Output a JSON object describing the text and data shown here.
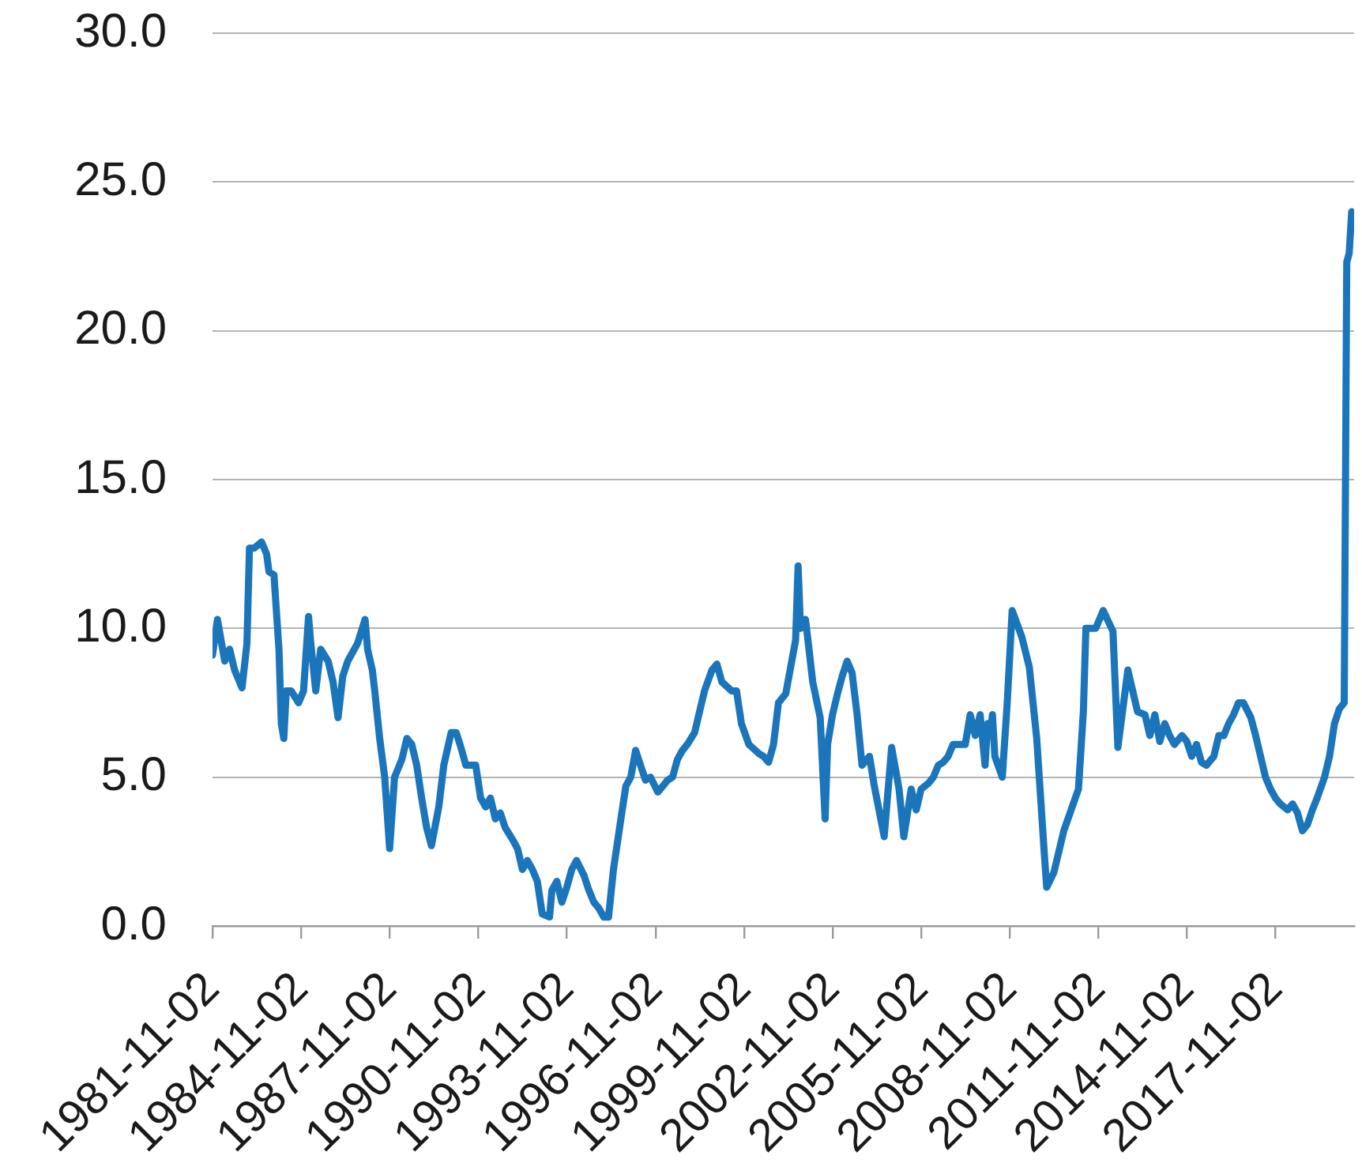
{
  "chart_data": {
    "type": "line",
    "color": "#1b75bb",
    "marker": "none",
    "line_style": "solid",
    "grid": "y",
    "x": [
      "1981-11",
      "1982-01",
      "1982-04",
      "1982-06",
      "1982-08",
      "1982-10",
      "1982-11",
      "1983-01",
      "1983-02",
      "1983-04",
      "1983-07",
      "1983-09",
      "1983-10",
      "1983-12",
      "1984-02",
      "1984-03",
      "1984-04",
      "1984-05",
      "1984-07",
      "1984-10",
      "1984-12",
      "1985-02",
      "1985-03",
      "1985-05",
      "1985-07",
      "1985-10",
      "1985-12",
      "1986-02",
      "1986-04",
      "1986-06",
      "1986-08",
      "1986-10",
      "1987-01",
      "1987-02",
      "1987-04",
      "1987-05",
      "1987-07",
      "1987-09",
      "1987-11",
      "1988-01",
      "1988-04",
      "1988-06",
      "1988-08",
      "1988-10",
      "1988-12",
      "1989-02",
      "1989-04",
      "1989-07",
      "1989-09",
      "1989-12",
      "1990-02",
      "1990-04",
      "1990-06",
      "1990-10",
      "1990-12",
      "1991-02",
      "1991-04",
      "1991-06",
      "1991-08",
      "1991-10",
      "1992-01",
      "1992-03",
      "1992-05",
      "1992-07",
      "1992-09",
      "1992-11",
      "1993-01",
      "1993-04",
      "1993-05",
      "1993-07",
      "1993-09",
      "1993-11",
      "1994-01",
      "1994-03",
      "1994-06",
      "1994-08",
      "1994-10",
      "1994-12",
      "1995-02",
      "1995-04",
      "1995-06",
      "1995-09",
      "1995-11",
      "1996-01",
      "1996-03",
      "1996-05",
      "1996-07",
      "1996-09",
      "1996-12",
      "1997-02",
      "1997-04",
      "1997-06",
      "1997-08",
      "1997-10",
      "1997-12",
      "1998-03",
      "1998-05",
      "1998-07",
      "1998-10",
      "1998-12",
      "1999-02",
      "1999-06",
      "1999-08",
      "1999-10",
      "2000-01",
      "2000-05",
      "2000-07",
      "2000-09",
      "2000-11",
      "2001-01",
      "2001-04",
      "2001-06",
      "2001-08",
      "2001-09",
      "2001-10",
      "2001-12",
      "2002-01",
      "2002-03",
      "2002-06",
      "2002-08",
      "2002-09",
      "2002-11",
      "2003-01",
      "2003-03",
      "2003-05",
      "2003-07",
      "2003-09",
      "2003-11",
      "2004-02",
      "2004-04",
      "2004-08",
      "2004-11",
      "2005-02",
      "2005-04",
      "2005-07",
      "2005-09",
      "2005-11",
      "2006-02",
      "2006-04",
      "2006-06",
      "2006-08",
      "2006-10",
      "2006-12",
      "2007-02",
      "2007-05",
      "2007-07",
      "2007-09",
      "2007-11",
      "2008-01",
      "2008-02",
      "2008-03",
      "2008-04",
      "2008-05",
      "2008-08",
      "2008-10",
      "2008-12",
      "2009-04",
      "2009-07",
      "2009-10",
      "2010-01",
      "2010-02",
      "2010-05",
      "2010-09",
      "2011-03",
      "2011-05",
      "2011-06",
      "2011-10",
      "2012-01",
      "2012-05",
      "2012-07",
      "2012-11",
      "2013-03",
      "2013-06",
      "2013-08",
      "2013-10",
      "2013-12",
      "2014-02",
      "2014-04",
      "2014-06",
      "2014-09",
      "2014-11",
      "2015-01",
      "2015-03",
      "2015-05",
      "2015-07",
      "2015-10",
      "2015-12",
      "2016-02",
      "2016-04",
      "2016-06",
      "2016-08",
      "2016-10",
      "2017-01",
      "2017-03",
      "2017-05",
      "2017-07",
      "2017-09",
      "2017-11",
      "2018-01",
      "2018-04",
      "2018-06",
      "2018-08",
      "2018-10",
      "2018-12",
      "2019-02",
      "2019-04",
      "2019-07",
      "2019-09",
      "2019-11",
      "2020-01",
      "2020-03",
      "2020-04",
      "2020-05",
      "2020-06"
    ],
    "values": [
      9.1,
      10.3,
      8.9,
      9.3,
      8.6,
      8.2,
      8.0,
      9.5,
      12.7,
      12.7,
      12.9,
      12.5,
      11.9,
      11.8,
      9.3,
      6.8,
      6.3,
      7.9,
      7.9,
      7.5,
      7.9,
      10.4,
      9.5,
      7.9,
      9.3,
      8.9,
      8.2,
      7.0,
      8.4,
      8.9,
      9.2,
      9.5,
      10.3,
      9.3,
      8.6,
      7.9,
      6.3,
      5.0,
      2.6,
      5.0,
      5.6,
      6.3,
      6.1,
      5.4,
      4.3,
      3.3,
      2.7,
      4.0,
      5.4,
      6.5,
      6.5,
      6.0,
      5.4,
      5.4,
      4.3,
      4.0,
      4.3,
      3.6,
      3.8,
      3.3,
      2.9,
      2.6,
      1.9,
      2.2,
      1.9,
      1.5,
      0.4,
      0.3,
      1.2,
      1.5,
      0.8,
      1.3,
      1.9,
      2.2,
      1.7,
      1.2,
      0.8,
      0.6,
      0.3,
      0.3,
      1.9,
      3.6,
      4.7,
      5.0,
      5.9,
      5.4,
      4.9,
      5.0,
      4.5,
      4.7,
      4.9,
      5.0,
      5.6,
      5.9,
      6.1,
      6.5,
      7.2,
      7.9,
      8.6,
      8.8,
      8.2,
      7.9,
      7.9,
      6.8,
      6.1,
      5.8,
      5.7,
      5.5,
      6.1,
      7.5,
      7.8,
      8.7,
      9.6,
      12.1,
      10.0,
      10.3,
      9.6,
      8.2,
      7.0,
      3.6,
      6.1,
      7.1,
      7.8,
      8.4,
      8.9,
      8.5,
      7.1,
      5.4,
      5.7,
      4.7,
      3.0,
      6.0,
      4.6,
      3.0,
      4.6,
      3.9,
      4.6,
      4.8,
      5.0,
      5.4,
      5.5,
      5.7,
      6.1,
      6.1,
      6.1,
      7.1,
      6.4,
      7.1,
      5.4,
      6.8,
      6.4,
      7.1,
      5.7,
      5.0,
      7.5,
      10.6,
      9.7,
      8.7,
      6.3,
      2.5,
      1.3,
      1.8,
      3.2,
      4.6,
      7.2,
      10.0,
      10.0,
      10.6,
      9.9,
      6.0,
      8.6,
      7.2,
      7.1,
      6.4,
      7.1,
      6.2,
      6.8,
      6.4,
      6.1,
      6.4,
      6.2,
      5.7,
      6.1,
      5.5,
      5.4,
      5.7,
      6.4,
      6.4,
      6.8,
      7.1,
      7.5,
      7.5,
      7.0,
      6.4,
      5.7,
      5.0,
      4.6,
      4.3,
      4.1,
      3.9,
      4.1,
      3.8,
      3.2,
      3.4,
      3.9,
      4.3,
      5.0,
      5.7,
      6.8,
      7.3,
      7.5,
      22.3,
      22.6,
      24.0
    ],
    "xlim": [
      "1981-11-01",
      "2020-07-01"
    ],
    "xticks": [
      "1981-11-02",
      "1984-11-02",
      "1987-11-02",
      "1990-11-02",
      "1993-11-02",
      "1996-11-02",
      "1999-11-02",
      "2002-11-02",
      "2005-11-02",
      "2008-11-02",
      "2011-11-02",
      "2014-11-02",
      "2017-11-02"
    ],
    "ylim": [
      0,
      30
    ],
    "yticks": [
      {
        "value": 0,
        "label": "0.0"
      },
      {
        "value": 5,
        "label": "5.0"
      },
      {
        "value": 10,
        "label": "10.0"
      },
      {
        "value": 15,
        "label": "15.0"
      },
      {
        "value": 20,
        "label": "20.0"
      },
      {
        "value": 25,
        "label": "25.0"
      },
      {
        "value": 30,
        "label": "30.0"
      }
    ]
  }
}
